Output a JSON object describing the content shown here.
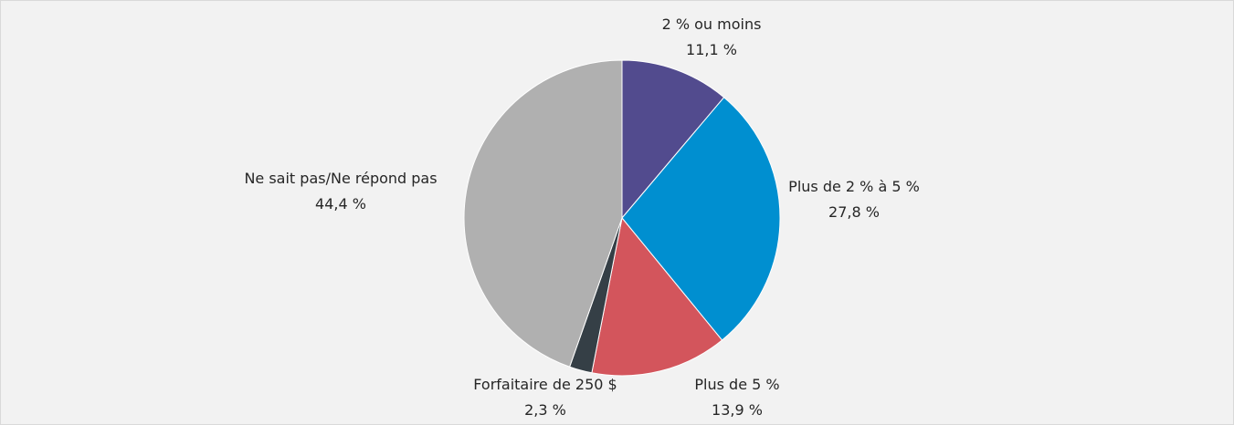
{
  "chart_data": {
    "type": "pie",
    "categories": [
      "2 % ou moins",
      "Plus de 2 % à 5 %",
      "Plus de 5 %",
      "Forfaitaire de 250 $",
      "Ne sait pas/Ne répond pas"
    ],
    "values": [
      11.1,
      27.8,
      13.9,
      2.3,
      44.4
    ],
    "value_labels": [
      "11,1 %",
      "27,8 %",
      "13,9 %",
      "2,3 %",
      "44,4 %"
    ],
    "colors": [
      "#524b8e",
      "#008fd0",
      "#d3555c",
      "#353f46",
      "#b0b0b0"
    ]
  }
}
